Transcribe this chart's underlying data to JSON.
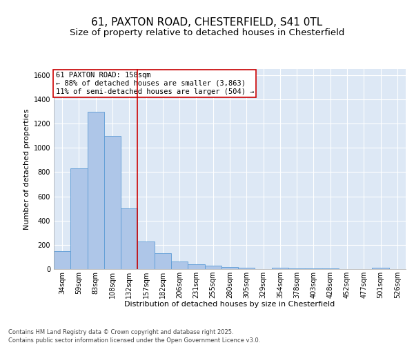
{
  "title_line1": "61, PAXTON ROAD, CHESTERFIELD, S41 0TL",
  "title_line2": "Size of property relative to detached houses in Chesterfield",
  "xlabel": "Distribution of detached houses by size in Chesterfield",
  "ylabel": "Number of detached properties",
  "categories": [
    "34sqm",
    "59sqm",
    "83sqm",
    "108sqm",
    "132sqm",
    "157sqm",
    "182sqm",
    "206sqm",
    "231sqm",
    "255sqm",
    "280sqm",
    "305sqm",
    "329sqm",
    "354sqm",
    "378sqm",
    "403sqm",
    "428sqm",
    "452sqm",
    "477sqm",
    "501sqm",
    "526sqm"
  ],
  "values": [
    150,
    830,
    1300,
    1100,
    500,
    230,
    130,
    65,
    40,
    30,
    15,
    10,
    0,
    10,
    5,
    5,
    3,
    2,
    1,
    10,
    0
  ],
  "bar_color": "#aec6e8",
  "bar_edge_color": "#5b9bd5",
  "background_color": "#dde8f5",
  "grid_color": "#ffffff",
  "vline_x_index": 5,
  "vline_color": "#cc0000",
  "annotation_text": "61 PAXTON ROAD: 158sqm\n← 88% of detached houses are smaller (3,863)\n11% of semi-detached houses are larger (504) →",
  "annotation_box_color": "#ffffff",
  "annotation_box_edge": "#cc0000",
  "ylim": [
    0,
    1650
  ],
  "yticks": [
    0,
    200,
    400,
    600,
    800,
    1000,
    1200,
    1400,
    1600
  ],
  "footer_text": "Contains HM Land Registry data © Crown copyright and database right 2025.\nContains public sector information licensed under the Open Government Licence v3.0.",
  "title_fontsize": 11,
  "subtitle_fontsize": 9.5,
  "axis_label_fontsize": 8,
  "tick_fontsize": 7,
  "annotation_fontsize": 7.5,
  "footer_fontsize": 6
}
